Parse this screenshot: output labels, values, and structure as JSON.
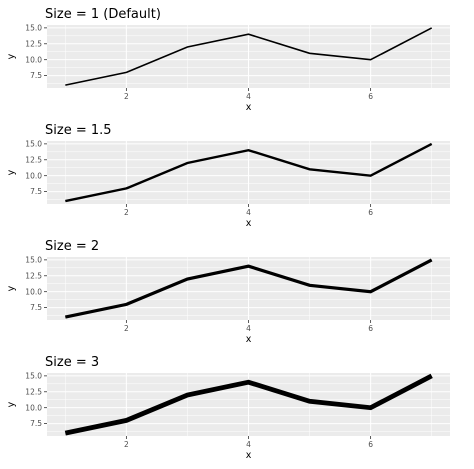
{
  "chart_data": [
    {
      "type": "line",
      "title": "Size = 1 (Default)",
      "xlabel": "x",
      "ylabel": "y",
      "line_size": 1,
      "x": [
        1,
        2,
        3,
        4,
        5,
        6,
        7
      ],
      "y": [
        6,
        8,
        12,
        14,
        11,
        10,
        15
      ],
      "xlim": [
        0.7,
        7.3
      ],
      "ylim": [
        5.55,
        15.45
      ],
      "xticks": [
        2,
        4,
        6
      ],
      "yticks": [
        7.5,
        10.0,
        12.5,
        15.0
      ],
      "xtick_labels": [
        "2",
        "4",
        "6"
      ],
      "ytick_labels": [
        "7.5",
        "10.0",
        "12.5",
        "15.0"
      ],
      "grid": true,
      "panel_color": "#ebebeb",
      "line_color": "#000000"
    },
    {
      "type": "line",
      "title": "Size = 1.5",
      "xlabel": "x",
      "ylabel": "y",
      "line_size": 1.5,
      "x": [
        1,
        2,
        3,
        4,
        5,
        6,
        7
      ],
      "y": [
        6,
        8,
        12,
        14,
        11,
        10,
        15
      ],
      "xlim": [
        0.7,
        7.3
      ],
      "ylim": [
        5.55,
        15.45
      ],
      "xticks": [
        2,
        4,
        6
      ],
      "yticks": [
        7.5,
        10.0,
        12.5,
        15.0
      ],
      "xtick_labels": [
        "2",
        "4",
        "6"
      ],
      "ytick_labels": [
        "7.5",
        "10.0",
        "12.5",
        "15.0"
      ],
      "grid": true,
      "panel_color": "#ebebeb",
      "line_color": "#000000"
    },
    {
      "type": "line",
      "title": "Size = 2",
      "xlabel": "x",
      "ylabel": "y",
      "line_size": 2,
      "x": [
        1,
        2,
        3,
        4,
        5,
        6,
        7
      ],
      "y": [
        6,
        8,
        12,
        14,
        11,
        10,
        15
      ],
      "xlim": [
        0.7,
        7.3
      ],
      "ylim": [
        5.55,
        15.45
      ],
      "xticks": [
        2,
        4,
        6
      ],
      "yticks": [
        7.5,
        10.0,
        12.5,
        15.0
      ],
      "xtick_labels": [
        "2",
        "4",
        "6"
      ],
      "ytick_labels": [
        "7.5",
        "10.0",
        "12.5",
        "15.0"
      ],
      "grid": true,
      "panel_color": "#ebebeb",
      "line_color": "#000000"
    },
    {
      "type": "line",
      "title": "Size = 3",
      "xlabel": "x",
      "ylabel": "y",
      "line_size": 3,
      "x": [
        1,
        2,
        3,
        4,
        5,
        6,
        7
      ],
      "y": [
        6,
        8,
        12,
        14,
        11,
        10,
        15
      ],
      "xlim": [
        0.7,
        7.3
      ],
      "ylim": [
        5.55,
        15.45
      ],
      "xticks": [
        2,
        4,
        6
      ],
      "yticks": [
        7.5,
        10.0,
        12.5,
        15.0
      ],
      "xtick_labels": [
        "2",
        "4",
        "6"
      ],
      "ytick_labels": [
        "7.5",
        "10.0",
        "12.5",
        "15.0"
      ],
      "grid": true,
      "panel_color": "#ebebeb",
      "line_color": "#000000"
    }
  ]
}
